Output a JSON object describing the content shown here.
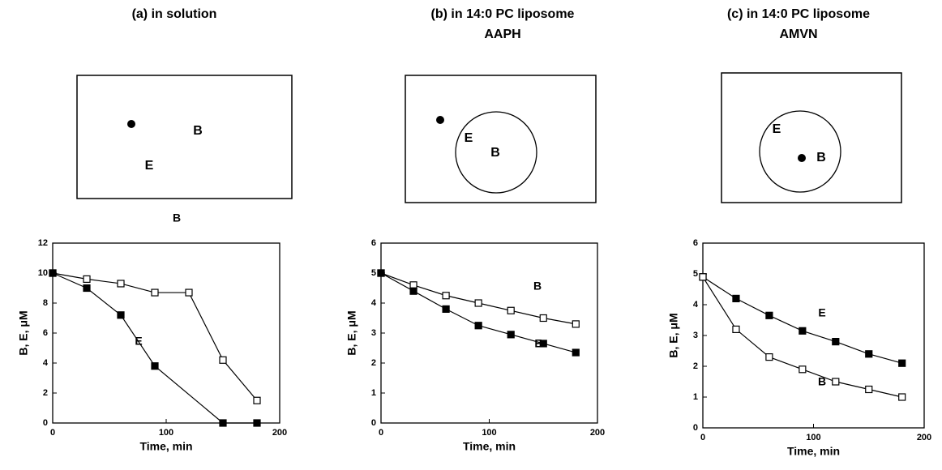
{
  "chart_data": [
    {
      "type": "line",
      "title": "(a) in solution",
      "xlabel": "Time, min",
      "ylabel": "B, E, μM",
      "xlim": [
        0,
        200
      ],
      "xticks": [
        0,
        100,
        200
      ],
      "ylim": [
        0,
        12
      ],
      "yticks": [
        0,
        2,
        4,
        6,
        8,
        10,
        12
      ],
      "series": [
        {
          "name": "B",
          "color": "#000000",
          "marker_fill": "#ffffff",
          "x": [
            0,
            30,
            60,
            90,
            120,
            150,
            180
          ],
          "values": [
            10,
            9.6,
            9.3,
            8.7,
            8.7,
            4.2,
            1.5
          ]
        },
        {
          "name": "E",
          "color": "#000000",
          "marker_fill": "#000000",
          "x": [
            0,
            30,
            60,
            90,
            150,
            180
          ],
          "values": [
            10,
            9.0,
            7.2,
            3.8,
            0,
            0
          ]
        }
      ]
    },
    {
      "type": "line",
      "title": "(b) in 14:0 PC liposome",
      "subtitle": "AAPH",
      "xlabel": "Time, min",
      "ylabel": "B, E, μM",
      "xlim": [
        0,
        200
      ],
      "xticks": [
        0,
        100,
        200
      ],
      "ylim": [
        0,
        6
      ],
      "yticks": [
        0,
        1,
        2,
        3,
        4,
        5,
        6
      ],
      "series": [
        {
          "name": "B",
          "color": "#000000",
          "marker_fill": "#ffffff",
          "x": [
            0,
            30,
            60,
            90,
            120,
            150,
            180
          ],
          "values": [
            5,
            4.6,
            4.25,
            4.0,
            3.75,
            3.5,
            3.3
          ]
        },
        {
          "name": "E",
          "color": "#000000",
          "marker_fill": "#000000",
          "x": [
            0,
            30,
            60,
            90,
            120,
            150,
            180
          ],
          "values": [
            5,
            4.4,
            3.8,
            3.25,
            2.95,
            2.65,
            2.35
          ]
        }
      ]
    },
    {
      "type": "line",
      "title": "(c) in 14:0 PC liposome",
      "subtitle": "AMVN",
      "xlabel": "Time, min",
      "ylabel": "B, E, μM",
      "xlim": [
        0,
        200
      ],
      "xticks": [
        0,
        100,
        200
      ],
      "ylim": [
        0,
        6
      ],
      "yticks": [
        0,
        1,
        2,
        3,
        4,
        5,
        6
      ],
      "series": [
        {
          "name": "E",
          "color": "#000000",
          "marker_fill": "#000000",
          "x": [
            0,
            30,
            60,
            90,
            120,
            150,
            180
          ],
          "values": [
            4.9,
            4.2,
            3.65,
            3.15,
            2.8,
            2.4,
            2.1
          ]
        },
        {
          "name": "B",
          "color": "#000000",
          "marker_fill": "#ffffff",
          "x": [
            0,
            30,
            60,
            90,
            120,
            150,
            180
          ],
          "values": [
            4.9,
            3.2,
            2.3,
            1.9,
            1.5,
            1.25,
            1.0
          ]
        }
      ]
    }
  ],
  "diagrams": [
    {
      "labels": [
        "B",
        "E"
      ]
    },
    {
      "labels": [
        "E",
        "B"
      ]
    },
    {
      "labels": [
        "E",
        "B"
      ]
    }
  ]
}
